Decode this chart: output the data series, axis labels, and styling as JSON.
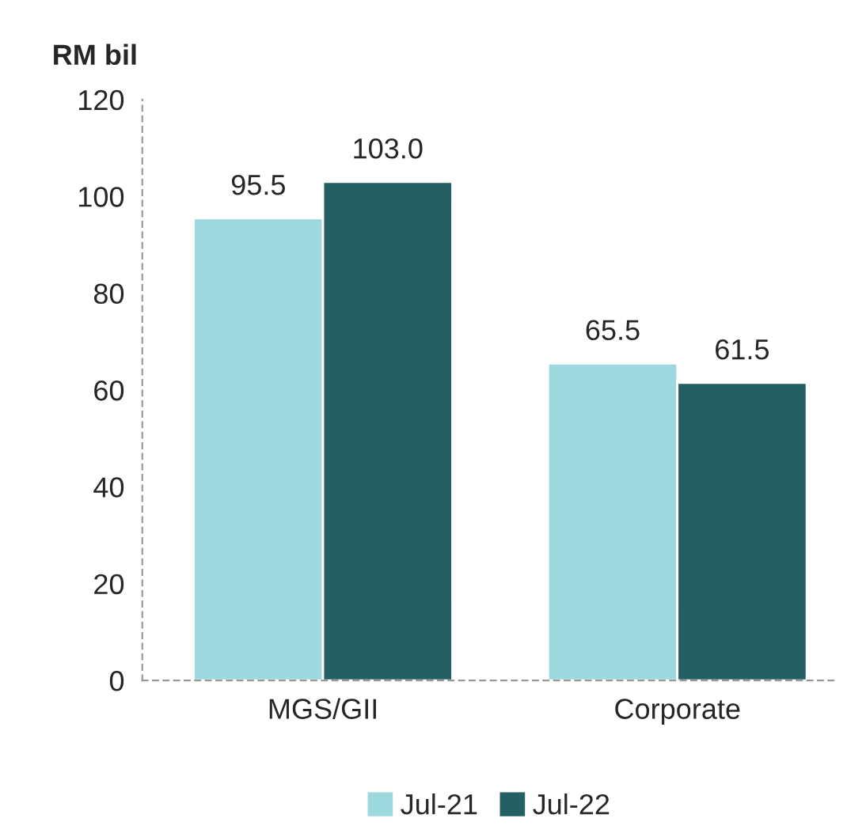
{
  "chart_data": {
    "type": "bar",
    "ylabel": "RM bil",
    "categories": [
      "MGS/GII",
      "Corporate"
    ],
    "series": [
      {
        "name": "Jul-21",
        "color": "#9dd8df",
        "values": [
          95.5,
          65.5
        ],
        "value_labels": [
          "95.5",
          "65.5"
        ]
      },
      {
        "name": "Jul-22",
        "color": "#235f63",
        "values": [
          103.0,
          61.5
        ],
        "value_labels": [
          "103.0",
          "61.5"
        ]
      }
    ],
    "ylim": [
      0,
      120
    ],
    "yticks": [
      0,
      20,
      40,
      60,
      80,
      100,
      120
    ],
    "grid": false,
    "legend": "bottom"
  }
}
